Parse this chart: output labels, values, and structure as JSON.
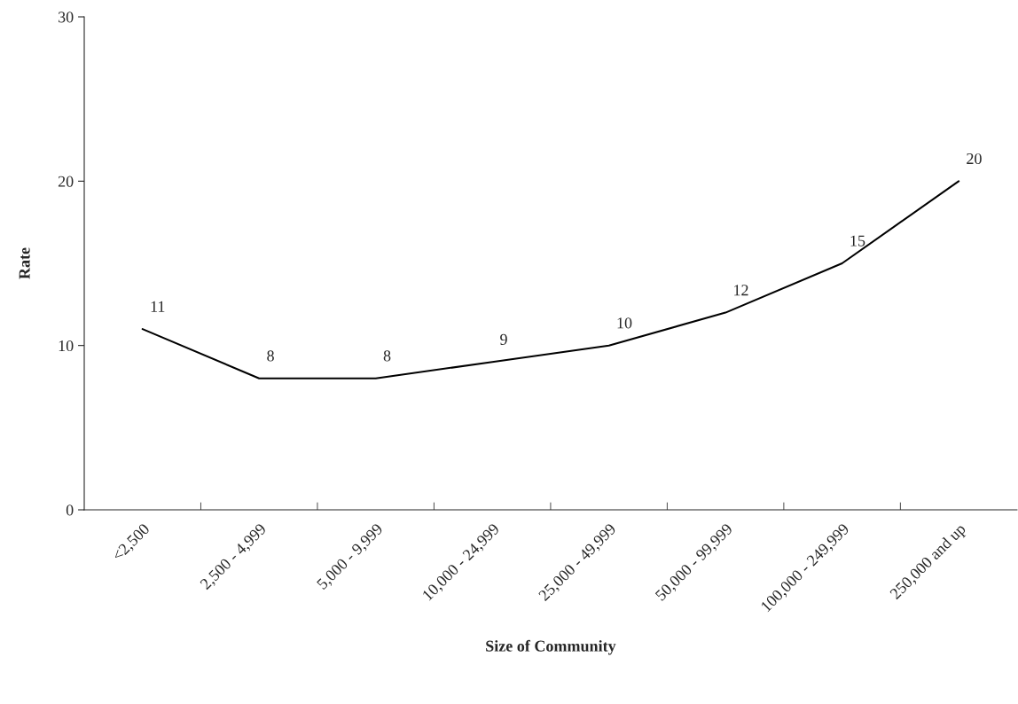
{
  "chart_data": {
    "type": "line",
    "xlabel": "Size of Community",
    "ylabel": "Rate",
    "categories": [
      "<2,500",
      "2,500 - 4,999",
      "5,000 - 9,999",
      "10,000 - 24,999",
      "25,000 - 49,999",
      "50,000 - 99,999",
      "100,000 - 249,999",
      "250,000 and up"
    ],
    "series": [
      {
        "color": "#000000",
        "values": [
          11,
          8,
          8,
          9,
          10,
          12,
          15,
          20
        ]
      }
    ],
    "ylim": [
      0,
      30
    ],
    "yticks": [
      0,
      10,
      20,
      30
    ],
    "data_labels": true,
    "grid": false,
    "legend": false,
    "marker": "none",
    "line_style": "solid"
  }
}
